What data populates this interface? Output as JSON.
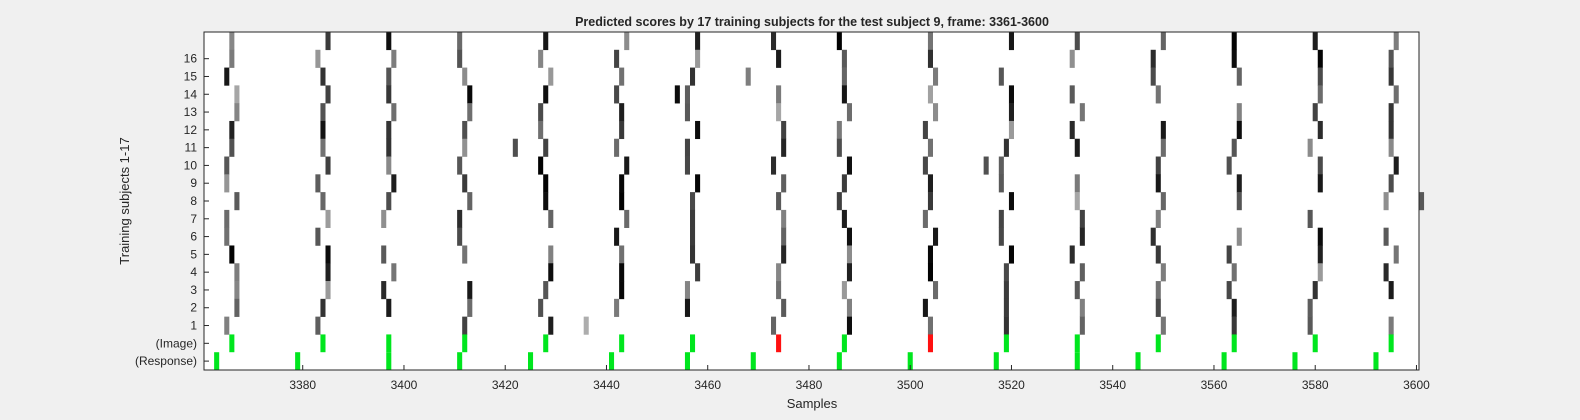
{
  "chart_data": {
    "type": "heatmap",
    "title": "Predicted scores by 17 training subjects for the test subject 9, frame: 3361-3600",
    "xlabel": "Samples",
    "ylabel": "Training subjects 1-17",
    "xlim": [
      3361,
      3600
    ],
    "x_ticks": [
      3380,
      3400,
      3420,
      3440,
      3460,
      3480,
      3500,
      3520,
      3540,
      3560,
      3580,
      3600
    ],
    "y_tick_labels": [
      "16",
      "15",
      "14",
      "13",
      "12",
      "11",
      "10",
      "9",
      "8",
      "7",
      "6",
      "5",
      "4",
      "3",
      "2",
      "1",
      "(Image)",
      "(Response)"
    ],
    "rows_top_to_bottom": [
      "(unlabeled)",
      "16",
      "15",
      "14",
      "13",
      "12",
      "11",
      "10",
      "9",
      "8",
      "7",
      "6",
      "5",
      "4",
      "3",
      "2",
      "1",
      "(Image)",
      "(Response)"
    ],
    "grid": false,
    "colors": {
      "background": "#ffffff",
      "score_dark": "#000000",
      "match": "#00e61e",
      "mismatch": "#ff1010",
      "figure_bg": "#f0f0f0"
    },
    "heat_pattern": {
      "description": "grayscale score marks at each event column; value 1 = black, 0 = white",
      "event_columns": [
        {
          "x": 3366,
          "rows": {
            "0": 0.6,
            "15": 0.3,
            "14": 0.6,
            "13": 0.5,
            "12": 0.6,
            "11": 0.7,
            "10": 0.6,
            "9": 0.6,
            "8": 0.95,
            "4": 0.6,
            "3": 0.95,
            "2": 0.2,
            "1": 0.95,
            "0b": 0.7
          }
        },
        {
          "x": 3384,
          "rows": {
            "0": 0.7,
            "16": 0.95,
            "15": 0.95,
            "14": 0.95,
            "13": 0.2,
            "12": 0.95,
            "11": 0.95,
            "10": 0.7,
            "9": 0.6,
            "5": 0.6,
            "4": 0.95,
            "2": 0.6
          }
        }
      ]
    },
    "image_markers": [
      {
        "x": 3366,
        "color": "match"
      },
      {
        "x": 3384,
        "color": "match"
      },
      {
        "x": 3397,
        "color": "match"
      },
      {
        "x": 3412,
        "color": "match"
      },
      {
        "x": 3428,
        "color": "match"
      },
      {
        "x": 3443,
        "color": "match"
      },
      {
        "x": 3457,
        "color": "match"
      },
      {
        "x": 3474,
        "color": "mismatch"
      },
      {
        "x": 3487,
        "color": "match"
      },
      {
        "x": 3504,
        "color": "mismatch"
      },
      {
        "x": 3519,
        "color": "match"
      },
      {
        "x": 3533,
        "color": "match"
      },
      {
        "x": 3549,
        "color": "match"
      },
      {
        "x": 3564,
        "color": "match"
      },
      {
        "x": 3580,
        "color": "match"
      },
      {
        "x": 3595,
        "color": "match"
      }
    ],
    "response_markers": [
      3363,
      3379,
      3397,
      3411,
      3425,
      3441,
      3456,
      3469,
      3486,
      3500,
      3517,
      3533,
      3545,
      3562,
      3576,
      3592
    ]
  }
}
